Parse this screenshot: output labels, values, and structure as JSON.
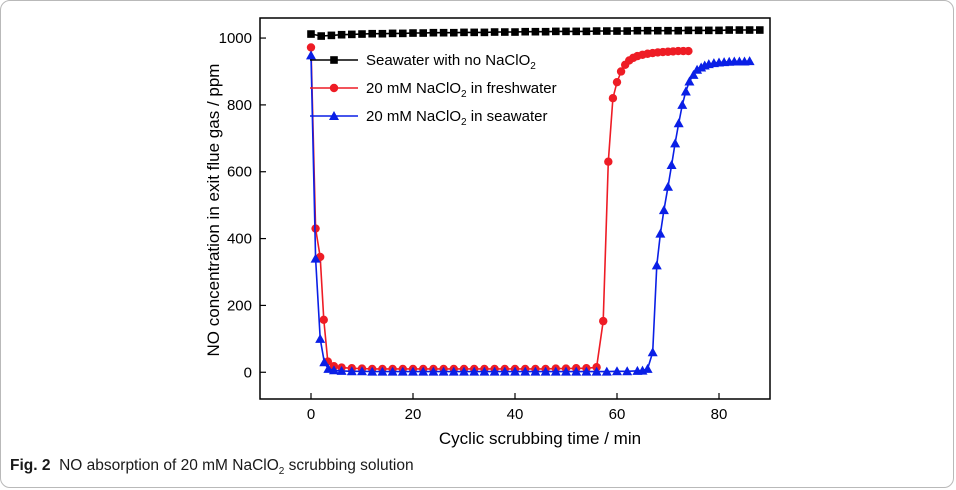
{
  "caption": {
    "label": "Fig. 2",
    "text_before": "NO absorption of 20 mM NaClO",
    "text_sub": "2",
    "text_after": " scrubbing solution"
  },
  "chart_data": {
    "type": "line",
    "title": "",
    "xlabel": "Cyclic scrubbing time / min",
    "ylabel": "NO concentration in exit flue gas / ppm",
    "xlim": [
      -10,
      90
    ],
    "ylim": [
      -80,
      1060
    ],
    "x_ticks": [
      0,
      20,
      40,
      60,
      80
    ],
    "y_ticks": [
      0,
      200,
      400,
      600,
      800,
      1000
    ],
    "grid": false,
    "legend_position": "top-right",
    "series": [
      {
        "name": "Seawater with no NaClO2",
        "name_base": "Seawater with no NaClO",
        "name_sub": "2",
        "name_tail": "",
        "color": "#000000",
        "marker": "square",
        "x": [
          0,
          2,
          4,
          6,
          8,
          10,
          12,
          14,
          16,
          18,
          20,
          22,
          24,
          26,
          28,
          30,
          32,
          34,
          36,
          38,
          40,
          42,
          44,
          46,
          48,
          50,
          52,
          54,
          56,
          58,
          60,
          62,
          64,
          66,
          68,
          70,
          72,
          74,
          76,
          78,
          80,
          82,
          84,
          86,
          88
        ],
        "y": [
          1012,
          1006,
          1008,
          1010,
          1011,
          1012,
          1013,
          1013,
          1014,
          1014,
          1015,
          1015,
          1016,
          1016,
          1016,
          1017,
          1017,
          1017,
          1018,
          1018,
          1018,
          1019,
          1019,
          1019,
          1020,
          1020,
          1020,
          1020,
          1021,
          1021,
          1021,
          1021,
          1022,
          1022,
          1022,
          1022,
          1022,
          1023,
          1023,
          1023,
          1023,
          1024,
          1024,
          1024,
          1024
        ]
      },
      {
        "name": "20 mM NaClO2 in freshwater",
        "name_base": "20 mM NaClO",
        "name_sub": "2",
        "name_tail": " in freshwater",
        "color": "#ee1c25",
        "marker": "circle",
        "x": [
          0,
          0.9,
          1.8,
          2.5,
          3.3,
          4.5,
          6,
          8,
          10,
          12,
          14,
          16,
          18,
          20,
          22,
          24,
          26,
          28,
          30,
          32,
          34,
          36,
          38,
          40,
          42,
          44,
          46,
          48,
          50,
          52,
          54,
          56,
          57.3,
          58.3,
          59.2,
          60,
          60.8,
          61.6,
          62.4,
          63.2,
          64,
          65,
          66,
          67,
          68,
          69,
          70,
          71,
          72,
          73,
          74
        ],
        "y": [
          972,
          430,
          345,
          157,
          32,
          18,
          14,
          12,
          11,
          10,
          10,
          10,
          10,
          10,
          10,
          10,
          10,
          10,
          10,
          10,
          10,
          10,
          10,
          10,
          10,
          10,
          10,
          11,
          11,
          12,
          12,
          15,
          153,
          630,
          820,
          868,
          900,
          920,
          933,
          941,
          946,
          950,
          953,
          955,
          957,
          958,
          959,
          960,
          961,
          961,
          961
        ]
      },
      {
        "name": "20 mM NaClO2 in seawater",
        "name_base": "20 mM NaClO",
        "name_sub": "2",
        "name_tail": " in seawater",
        "color": "#0a1fe6",
        "marker": "triangle",
        "x": [
          0,
          0.9,
          1.8,
          2.6,
          3.4,
          4.5,
          6,
          8,
          10,
          12,
          14,
          16,
          18,
          20,
          22,
          24,
          26,
          28,
          30,
          32,
          34,
          36,
          38,
          40,
          42,
          44,
          46,
          48,
          50,
          52,
          54,
          56,
          58,
          60,
          62,
          64,
          65,
          66,
          67,
          67.8,
          68.5,
          69.2,
          70,
          70.7,
          71.4,
          72.1,
          72.8,
          73.5,
          74.2,
          75,
          75.7,
          76.5,
          77.2,
          78,
          79,
          80,
          81,
          82,
          83,
          84,
          85,
          86
        ],
        "y": [
          948,
          340,
          100,
          30,
          10,
          6,
          4,
          3,
          3,
          2,
          2,
          2,
          2,
          2,
          2,
          2,
          2,
          2,
          2,
          2,
          2,
          2,
          2,
          2,
          2,
          2,
          2,
          2,
          2,
          2,
          2,
          2,
          2,
          3,
          3,
          4,
          5,
          10,
          60,
          320,
          415,
          485,
          555,
          620,
          685,
          745,
          800,
          840,
          870,
          890,
          905,
          912,
          918,
          922,
          925,
          927,
          928,
          929,
          930,
          930,
          930,
          931
        ]
      }
    ]
  }
}
